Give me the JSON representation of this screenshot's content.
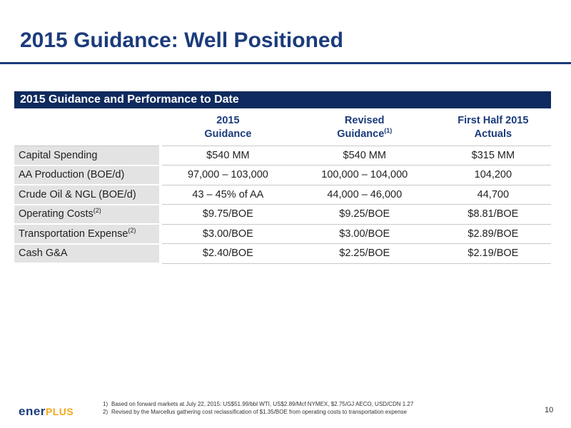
{
  "slide": {
    "title": "2015 Guidance: Well Positioned",
    "page_number": "10"
  },
  "table": {
    "title": "2015 Guidance and Performance to Date",
    "columns": [
      {
        "line1": "2015",
        "line2": "Guidance",
        "sup": ""
      },
      {
        "line1": "Revised",
        "line2": "Guidance",
        "sup": "(1)"
      },
      {
        "line1": "First Half 2015",
        "line2": "Actuals",
        "sup": ""
      }
    ],
    "rows": [
      {
        "label": "Capital Spending",
        "sup": "",
        "values": [
          "$540 MM",
          "$540 MM",
          "$315 MM"
        ]
      },
      {
        "label": "AA Production (BOE/d)",
        "sup": "",
        "values": [
          "97,000 – 103,000",
          "100,000 – 104,000",
          "104,200"
        ]
      },
      {
        "label": "Crude Oil & NGL (BOE/d)",
        "sup": "",
        "values": [
          "43 – 45% of AA",
          "44,000 – 46,000",
          "44,700"
        ]
      },
      {
        "label": "Operating Costs",
        "sup": "(2)",
        "values": [
          "$9.75/BOE",
          "$9.25/BOE",
          "$8.81/BOE"
        ]
      },
      {
        "label": "Transportation Expense",
        "sup": "(2)",
        "values": [
          "$3.00/BOE",
          "$3.00/BOE",
          "$2.89/BOE"
        ]
      },
      {
        "label": "Cash G&A",
        "sup": "",
        "values": [
          "$2.40/BOE",
          "$2.25/BOE",
          "$2.19/BOE"
        ]
      }
    ]
  },
  "footnotes": [
    {
      "num": "1)",
      "text": "Based on forward markets at July 22, 2015: US$51.99/bbl WTI, US$2.89/Mcf NYMEX, $2.75/GJ AECO, USD/CDN 1.27"
    },
    {
      "num": "2)",
      "text": "Revised by the Marcellus gathering cost reclassification of $1.35/BOE from operating costs to transportation expense"
    }
  ],
  "logo": {
    "text_main": "ener",
    "text_accent": "PLUS"
  }
}
